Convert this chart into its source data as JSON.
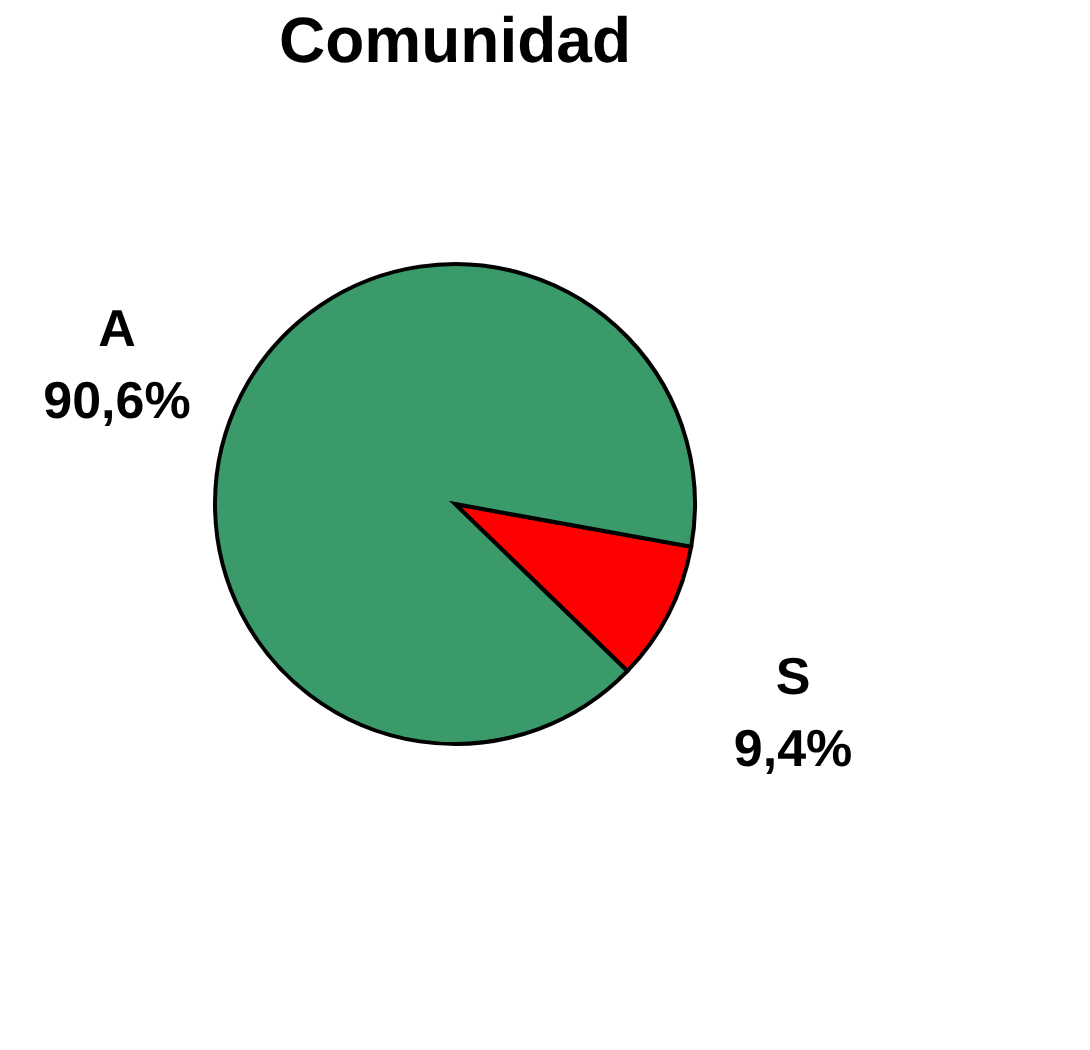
{
  "chart_data": {
    "type": "pie",
    "title": "Comunidad",
    "categories": [
      "S",
      "A"
    ],
    "values": [
      9.4,
      90.6
    ],
    "colors": [
      "#ff0000",
      "#3a9a6a"
    ],
    "value_labels": [
      "9,4%",
      "90,6%"
    ]
  }
}
